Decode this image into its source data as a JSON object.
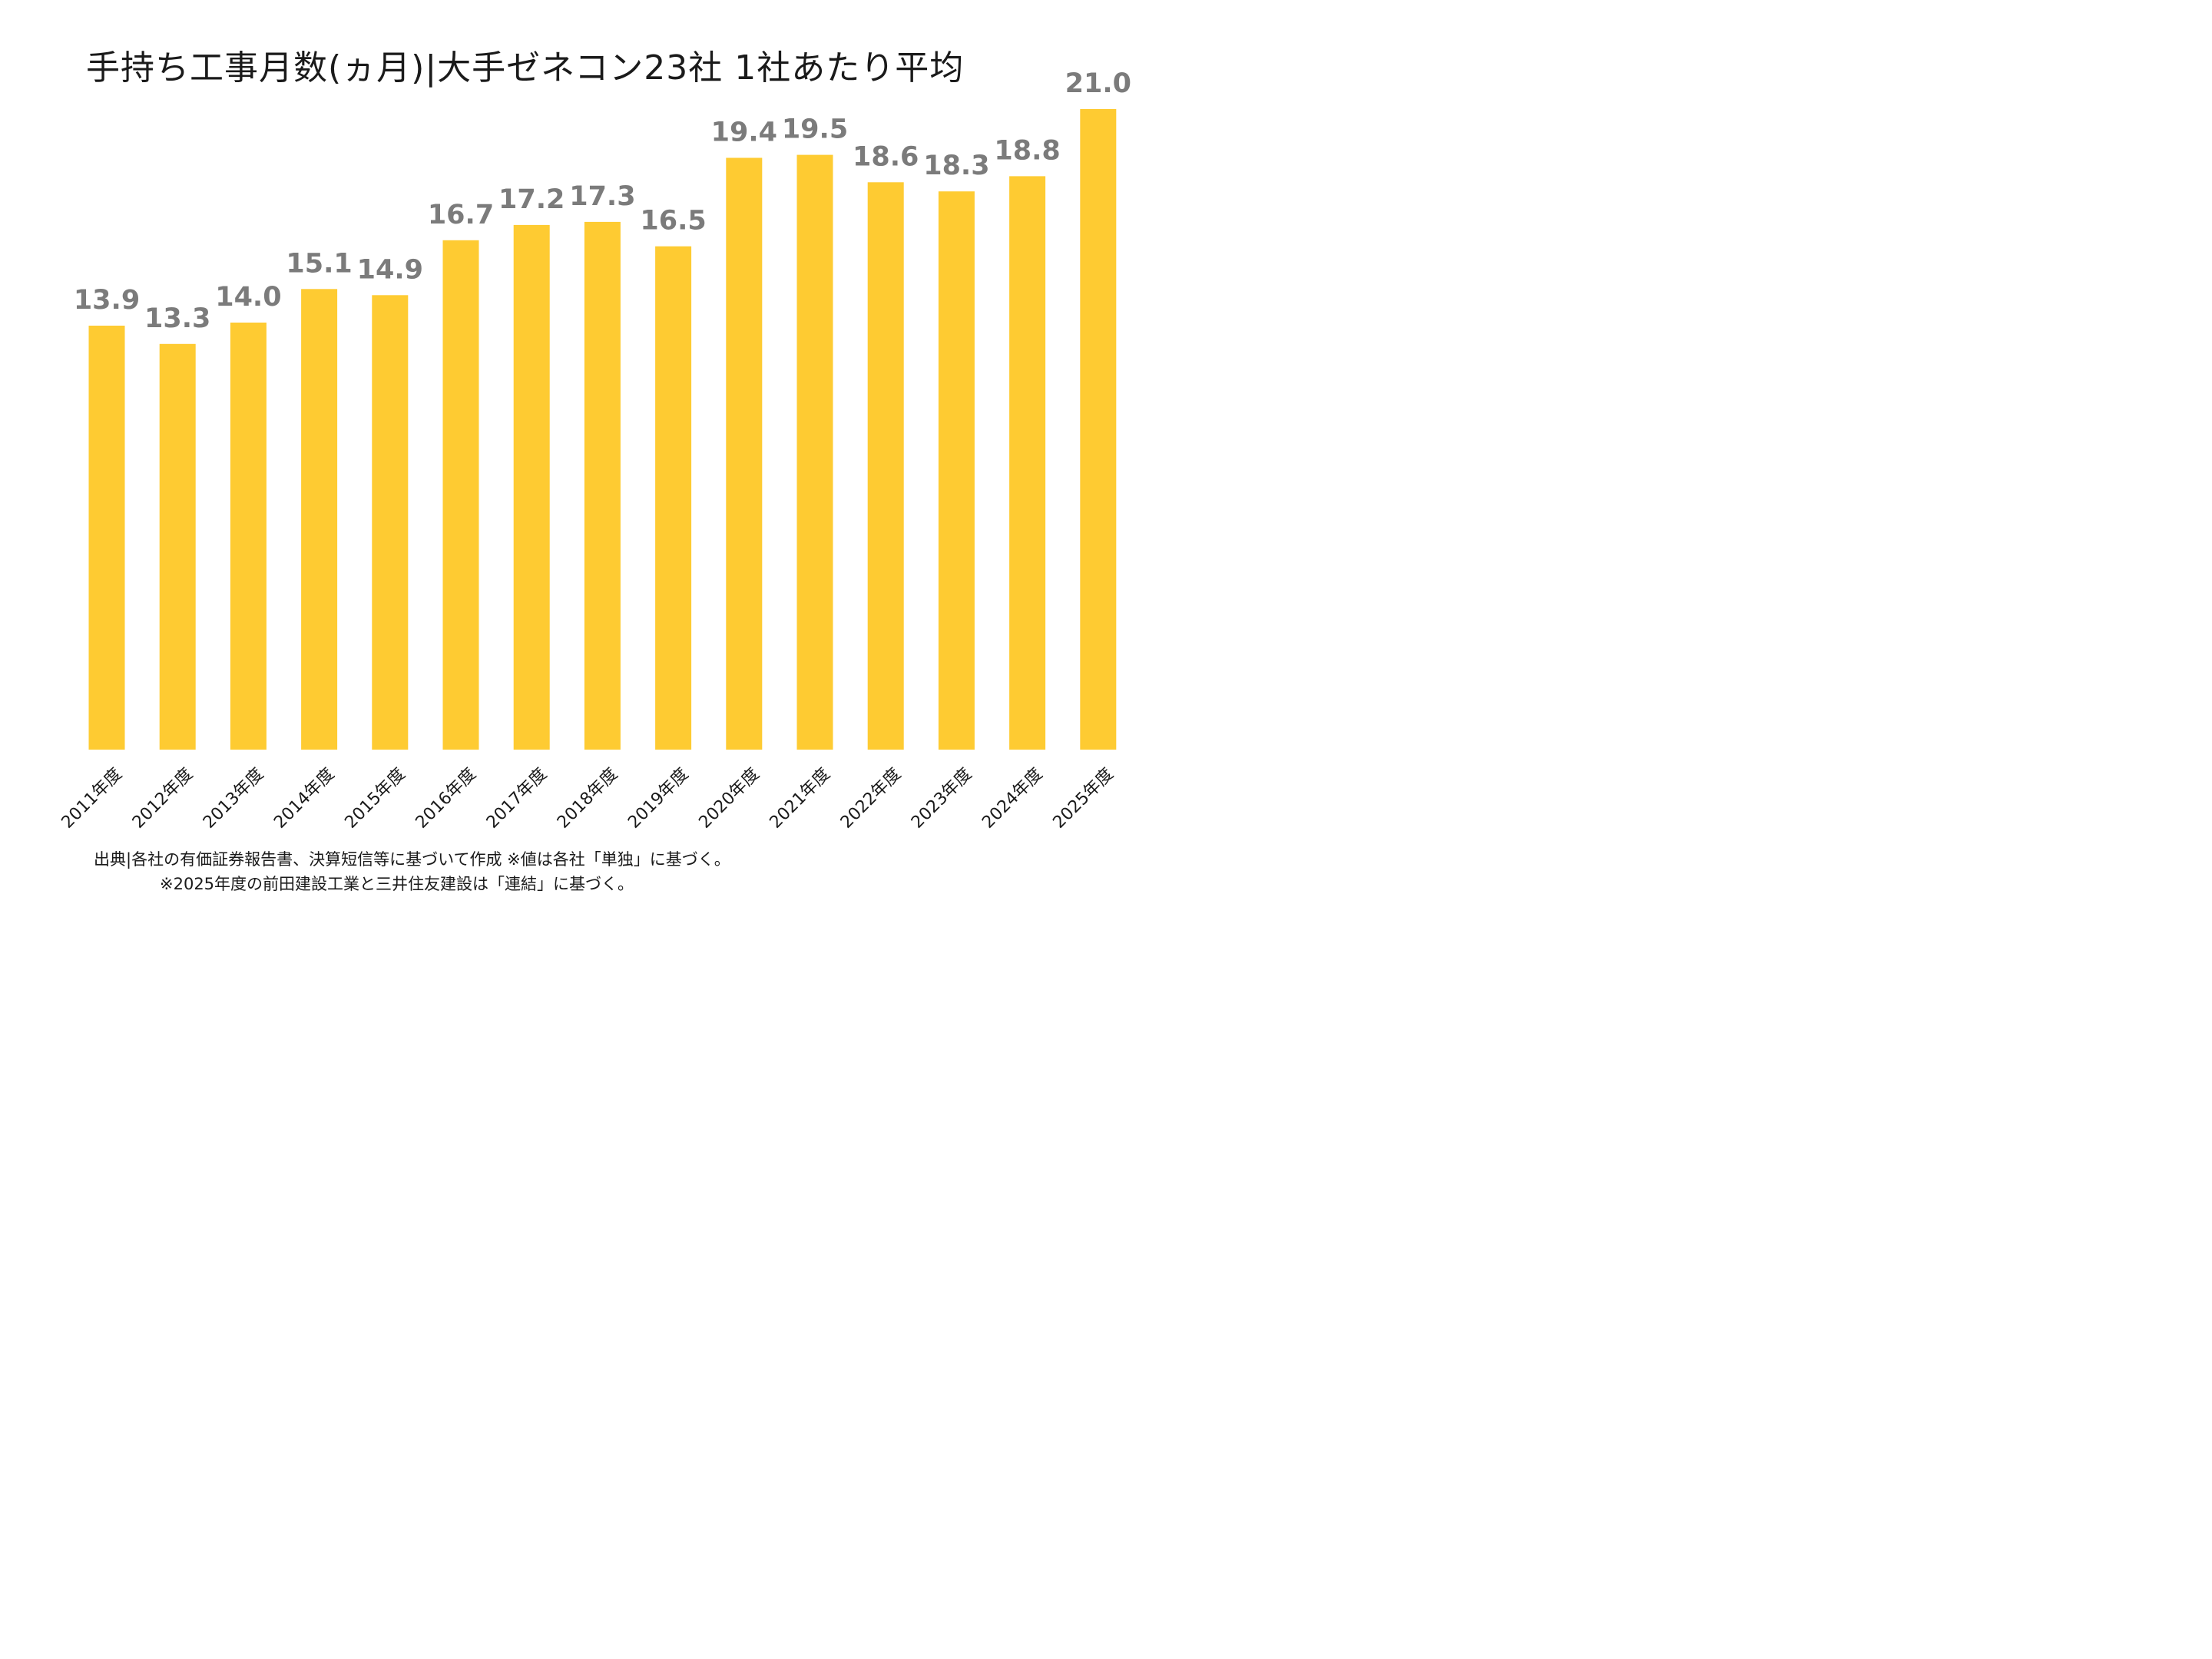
{
  "chart_data": {
    "type": "bar",
    "title": "手持ち工事月数(ヵ月)|大手ゼネコン23社 1社あたり平均",
    "xlabel": "",
    "ylabel": "",
    "categories": [
      "2011年度",
      "2012年度",
      "2013年度",
      "2014年度",
      "2015年度",
      "2016年度",
      "2017年度",
      "2018年度",
      "2019年度",
      "2020年度",
      "2021年度",
      "2022年度",
      "2023年度",
      "2024年度",
      "2025年度"
    ],
    "values": [
      13.9,
      13.3,
      14.0,
      15.1,
      14.9,
      16.7,
      17.2,
      17.3,
      16.5,
      19.4,
      19.5,
      18.6,
      18.3,
      18.8,
      21.0
    ],
    "data_labels": [
      "13.9",
      "13.3",
      "14.0",
      "15.1",
      "14.9",
      "16.7",
      "17.2",
      "17.3",
      "16.5",
      "19.4",
      "19.5",
      "18.6",
      "18.3",
      "18.8",
      "21.0"
    ],
    "ylim": [
      0,
      21.0
    ],
    "grid": false,
    "legend": "none",
    "bar_color": "#FECB32",
    "label_color": "#7b7b7b"
  },
  "notes": {
    "source": "出典|各社の有価証券報告書、決算短信等に基づいて作成 ※値は各社「単独」に基づく。",
    "footnote": "※2025年度の前田建設工業と三井住友建設は「連結」に基づく。"
  }
}
